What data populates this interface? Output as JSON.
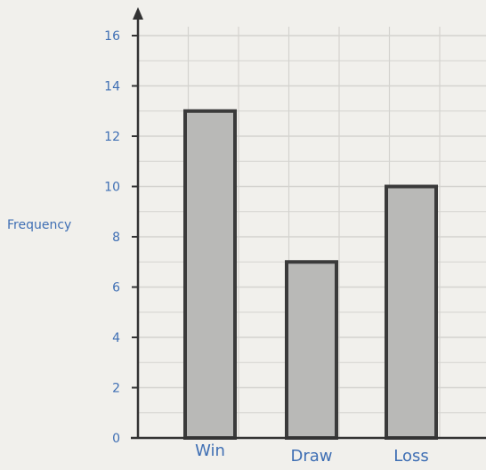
{
  "chart_data": {
    "type": "bar",
    "categories": [
      "Win",
      "Draw",
      "Loss"
    ],
    "values": [
      13,
      7,
      10
    ],
    "title": "",
    "xlabel": "",
    "ylabel": "Frequency",
    "ylim": [
      0,
      16
    ],
    "yticks": [
      0,
      2,
      4,
      6,
      8,
      10,
      12,
      14,
      16
    ],
    "grid": true,
    "colors": {
      "bar_fill": "#b9b9b7",
      "bar_stroke": "#3a3a3a",
      "grid": "#d4d3cf",
      "axis": "#333333",
      "label_text": "#3f6fb4"
    }
  }
}
